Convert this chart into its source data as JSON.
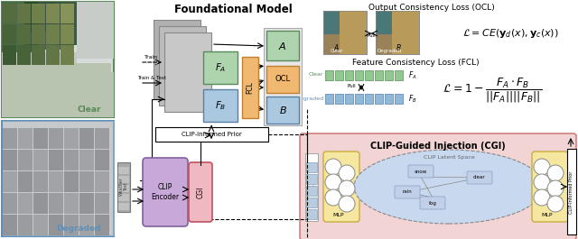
{
  "title": "Foundational Model",
  "bg_color": "#ffffff",
  "clear_label": "Clear",
  "degraded_label": "Degraded",
  "ocl_title": "Output Consistency Loss (OCL)",
  "fcl_title": "Feature Consistency Loss (FCL)",
  "cgi_title": "CLIP-Guided Injection (CGI)",
  "clip_latent_title": "CLIP Latent Space",
  "clear_box_color": "#5a8a5a",
  "degraded_box_color": "#6090b8",
  "pink_bg": "#f2d4d4",
  "light_yellow": "#f5e6a0",
  "light_green": "#aed4ae",
  "light_blue_box": "#aac8e0",
  "orange_box": "#f0b870",
  "purple_box": "#c8a8d8",
  "gray_box": "#b8b8b8",
  "light_blue_lv": "#c8d8ee",
  "img_latent_color": "#b8cce0"
}
